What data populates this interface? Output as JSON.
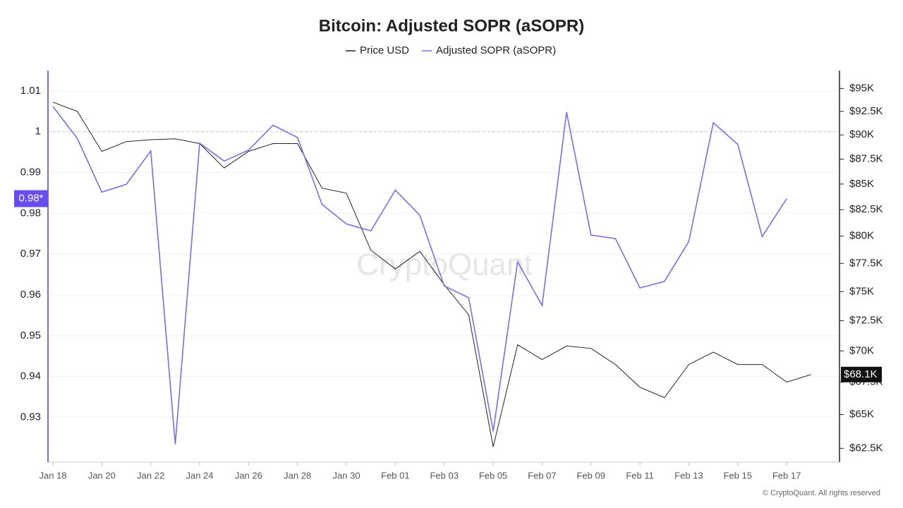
{
  "chart_data": {
    "type": "line",
    "title": "Bitcoin: Adjusted SOPR (aSOPR)",
    "watermark": "CryptoQuant",
    "footer": "© CryptoQuant. All rights reserved",
    "categories": [
      "Jan 18",
      null,
      "Jan 20",
      null,
      "Jan 22",
      null,
      "Jan 24",
      null,
      "Jan 26",
      null,
      "Jan 28",
      null,
      "Jan 30",
      null,
      "Feb 01",
      null,
      "Feb 03",
      null,
      "Feb 05",
      null,
      "Feb 07",
      null,
      "Feb 09",
      null,
      "Feb 11",
      null,
      "Feb 13",
      null,
      "Feb 15",
      null,
      "Feb 17",
      null
    ],
    "series": [
      {
        "name": "Price USD",
        "color": "#222222",
        "axis": "y2",
        "end_label": "$68.1K",
        "values": [
          93500,
          92500,
          88300,
          89300,
          89500,
          89600,
          89100,
          86600,
          88300,
          89100,
          89100,
          84600,
          84100,
          78700,
          77000,
          78600,
          75600,
          73000,
          62600,
          70500,
          69300,
          70400,
          70200,
          68900,
          67100,
          66300,
          68900,
          69900,
          68900,
          68900,
          67500,
          68100
        ]
      },
      {
        "name": "Adjusted SOPR (aSOPR)",
        "color": "#7b6cf0",
        "end_label": "0.98*",
        "values": [
          1.0062,
          0.9983,
          0.9852,
          0.9871,
          0.9953,
          0.9234,
          0.9972,
          0.9928,
          0.9955,
          1.0016,
          0.9986,
          0.9822,
          0.9774,
          0.9757,
          0.9857,
          0.9795,
          0.9622,
          0.9593,
          0.9266,
          0.9681,
          0.9574,
          1.0048,
          0.9747,
          0.9738,
          0.9617,
          0.9633,
          0.9731,
          1.0022,
          0.9969,
          0.9743,
          0.9836,
          null
        ]
      }
    ],
    "ylim": [
      0.919,
      1.015
    ],
    "yticks": [
      0.93,
      0.94,
      0.95,
      0.96,
      0.97,
      0.98,
      0.99,
      1,
      1.01
    ],
    "y2lim": [
      61500,
      97000
    ],
    "y2log": true,
    "y2ticks": [
      {
        "value": 62500,
        "label": "$62.5K"
      },
      {
        "value": 65000,
        "label": "$65K"
      },
      {
        "value": 67500,
        "label": "$67.5K"
      },
      {
        "value": 70000,
        "label": "$70K"
      },
      {
        "value": 72500,
        "label": "$72.5K"
      },
      {
        "value": 75000,
        "label": "$75K"
      },
      {
        "value": 77500,
        "label": "$77.5K"
      },
      {
        "value": 80000,
        "label": "$80K"
      },
      {
        "value": 82500,
        "label": "$82.5K"
      },
      {
        "value": 85000,
        "label": "$85K"
      },
      {
        "value": 87500,
        "label": "$87.5K"
      },
      {
        "value": 90000,
        "label": "$90K"
      },
      {
        "value": 92500,
        "label": "$92.5K"
      },
      {
        "value": 95000,
        "label": "$95K"
      }
    ],
    "reference_line": 1,
    "grid": true,
    "legend": "top"
  }
}
